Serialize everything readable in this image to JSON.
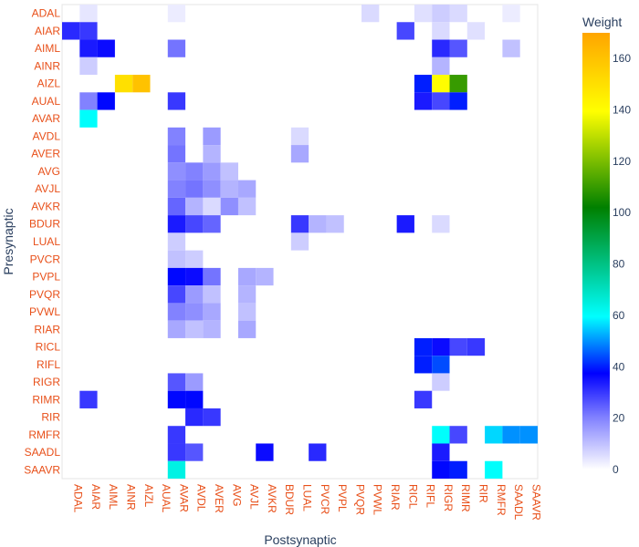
{
  "chart_data": {
    "type": "heatmap",
    "xlabel": "Postsynaptic",
    "ylabel": "Presynaptic",
    "n_rows": 27,
    "n_cols": 27,
    "row_tick_labels": [
      "ADAL",
      "AIAR",
      "AIML",
      "AINR",
      "AIZL",
      "AUAL",
      "AVAR",
      "AVDL",
      "AVER",
      "AVG",
      "AVJL",
      "AVKR",
      "BDUR",
      "LUAL",
      "PVCR",
      "PVPL",
      "PVQR",
      "PVWL",
      "RIAR",
      "RICL",
      "RIFL",
      "RIGR",
      "RIMR",
      "RIR",
      "RMFR",
      "SAADL",
      "SAAVR"
    ],
    "col_tick_labels": [
      "ADAL",
      "AIAR",
      "AIML",
      "AINR",
      "AIZL",
      "AUAL",
      "AVAR",
      "AVDL",
      "AVER",
      "AVG",
      "AVJL",
      "AVKR",
      "BDUR",
      "LUAL",
      "PVCR",
      "PVPL",
      "PVQR",
      "PVWL",
      "RIAR",
      "RICL",
      "RIFL",
      "RIGR",
      "RIMR",
      "RIR",
      "RMFR",
      "SAADL",
      "SAAVR"
    ],
    "colorbar": {
      "title": "Weight",
      "min": 0,
      "max": 170,
      "ticks": [
        0,
        20,
        40,
        60,
        80,
        100,
        120,
        140,
        160
      ]
    },
    "colorscale": [
      [
        0,
        "#ffffff"
      ],
      [
        0.12,
        "#8080ff"
      ],
      [
        0.22,
        "#0000ff"
      ],
      [
        0.35,
        "#00ffff"
      ],
      [
        0.6,
        "#008000"
      ],
      [
        0.82,
        "#ffff00"
      ],
      [
        1,
        "#ffa500"
      ]
    ],
    "cells": [
      [
        0,
        1,
        4
      ],
      [
        0,
        6,
        3
      ],
      [
        0,
        17,
        6
      ],
      [
        0,
        20,
        5
      ],
      [
        0,
        21,
        8
      ],
      [
        0,
        22,
        6
      ],
      [
        0,
        25,
        3
      ],
      [
        1,
        0,
        32
      ],
      [
        1,
        1,
        30
      ],
      [
        1,
        19,
        28
      ],
      [
        1,
        21,
        6
      ],
      [
        1,
        23,
        5
      ],
      [
        2,
        1,
        34
      ],
      [
        2,
        2,
        36
      ],
      [
        2,
        6,
        22
      ],
      [
        2,
        21,
        32
      ],
      [
        2,
        22,
        26
      ],
      [
        2,
        25,
        10
      ],
      [
        3,
        1,
        8
      ],
      [
        3,
        21,
        12
      ],
      [
        4,
        3,
        150
      ],
      [
        4,
        4,
        160
      ],
      [
        4,
        20,
        40
      ],
      [
        4,
        21,
        140
      ],
      [
        4,
        22,
        110
      ],
      [
        5,
        1,
        20
      ],
      [
        5,
        2,
        38
      ],
      [
        5,
        6,
        30
      ],
      [
        5,
        20,
        34
      ],
      [
        5,
        21,
        28
      ],
      [
        5,
        22,
        40
      ],
      [
        6,
        1,
        60
      ],
      [
        7,
        6,
        20
      ],
      [
        7,
        8,
        16
      ],
      [
        7,
        13,
        6
      ],
      [
        8,
        6,
        22
      ],
      [
        8,
        8,
        12
      ],
      [
        8,
        13,
        14
      ],
      [
        9,
        6,
        18
      ],
      [
        9,
        7,
        20
      ],
      [
        9,
        8,
        16
      ],
      [
        9,
        9,
        10
      ],
      [
        10,
        6,
        20
      ],
      [
        10,
        7,
        22
      ],
      [
        10,
        8,
        18
      ],
      [
        10,
        9,
        12
      ],
      [
        10,
        10,
        14
      ],
      [
        11,
        6,
        24
      ],
      [
        11,
        7,
        12
      ],
      [
        11,
        8,
        6
      ],
      [
        11,
        9,
        18
      ],
      [
        11,
        10,
        10
      ],
      [
        12,
        6,
        34
      ],
      [
        12,
        7,
        28
      ],
      [
        12,
        8,
        24
      ],
      [
        12,
        13,
        30
      ],
      [
        12,
        14,
        12
      ],
      [
        12,
        15,
        10
      ],
      [
        12,
        19,
        34
      ],
      [
        12,
        21,
        6
      ],
      [
        13,
        6,
        8
      ],
      [
        13,
        13,
        8
      ],
      [
        14,
        6,
        10
      ],
      [
        14,
        7,
        8
      ],
      [
        15,
        6,
        38
      ],
      [
        15,
        7,
        36
      ],
      [
        15,
        8,
        22
      ],
      [
        15,
        10,
        14
      ],
      [
        15,
        11,
        12
      ],
      [
        16,
        6,
        28
      ],
      [
        16,
        7,
        16
      ],
      [
        16,
        8,
        10
      ],
      [
        16,
        10,
        12
      ],
      [
        17,
        6,
        20
      ],
      [
        17,
        7,
        18
      ],
      [
        17,
        8,
        14
      ],
      [
        17,
        10,
        10
      ],
      [
        18,
        6,
        14
      ],
      [
        18,
        7,
        10
      ],
      [
        18,
        8,
        12
      ],
      [
        18,
        10,
        14
      ],
      [
        19,
        20,
        40
      ],
      [
        19,
        21,
        36
      ],
      [
        19,
        22,
        28
      ],
      [
        19,
        23,
        30
      ],
      [
        20,
        20,
        40
      ],
      [
        20,
        21,
        44
      ],
      [
        21,
        6,
        26
      ],
      [
        21,
        7,
        16
      ],
      [
        21,
        21,
        8
      ],
      [
        22,
        1,
        30
      ],
      [
        22,
        6,
        38
      ],
      [
        22,
        7,
        38
      ],
      [
        22,
        20,
        30
      ],
      [
        23,
        7,
        32
      ],
      [
        23,
        8,
        30
      ],
      [
        24,
        6,
        30
      ],
      [
        24,
        21,
        60
      ],
      [
        24,
        22,
        28
      ],
      [
        24,
        24,
        56
      ],
      [
        24,
        25,
        50
      ],
      [
        24,
        26,
        50
      ],
      [
        25,
        6,
        30
      ],
      [
        25,
        7,
        26
      ],
      [
        25,
        11,
        36
      ],
      [
        25,
        14,
        32
      ],
      [
        25,
        21,
        34
      ],
      [
        26,
        6,
        64
      ],
      [
        26,
        21,
        38
      ],
      [
        26,
        22,
        40
      ],
      [
        26,
        24,
        60
      ]
    ]
  }
}
